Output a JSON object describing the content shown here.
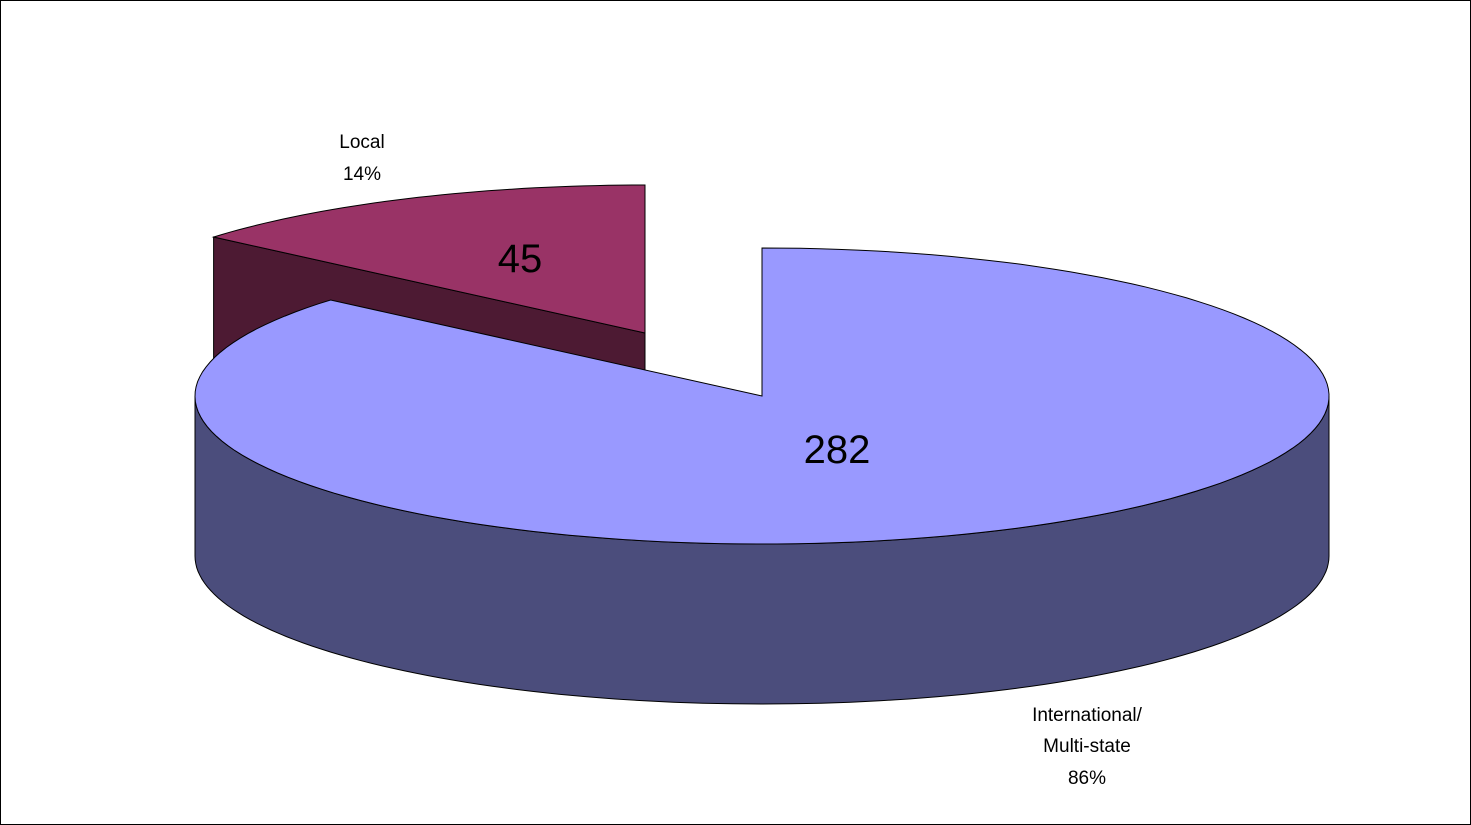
{
  "chart_data": {
    "type": "pie",
    "title": "",
    "style": "3d-exploded",
    "slices": [
      {
        "label": "International/ Multi-state",
        "label_lines": [
          "International/",
          "Multi-state"
        ],
        "value": 282,
        "percent": "86%",
        "color": "#9999ff",
        "side_color": "#4b4d7c",
        "exploded": false
      },
      {
        "label": "Local",
        "label_lines": [
          "Local"
        ],
        "value": 45,
        "percent": "14%",
        "color": "#993366",
        "side_color": "#4d1a33",
        "exploded": true
      }
    ]
  }
}
